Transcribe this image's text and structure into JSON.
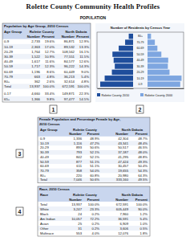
{
  "header": {
    "title": "Rolette County Community Health Profiles",
    "section": "POPULATION"
  },
  "markers": [
    "1",
    "2",
    "3",
    "4"
  ],
  "tables": [
    {
      "title": [
        "Population by Age Group, 2010 Census"
      ],
      "group_headers": [
        "Age Group",
        "Rolette County",
        "North Dakota"
      ],
      "columns": [
        "Number",
        "Percent",
        "Number",
        "Percent"
      ],
      "rows": [
        [
          "0-9",
          "2,733",
          "19.6%",
          "86,871",
          "12.9%"
        ],
        [
          "10-19",
          "2,363",
          "17.0%",
          "89,532",
          "13.3%"
        ],
        [
          "20-29",
          "1,764",
          "12.7%",
          "108,562",
          "16.1%"
        ],
        [
          "30-39",
          "1,522",
          "10.9%",
          "77,551",
          "11.5%"
        ],
        [
          "40-49",
          "1,617",
          "11.6%",
          "84,577",
          "12.6%"
        ],
        [
          "50-59",
          "1,717",
          "12.3%",
          "96,222",
          "14.3%"
        ],
        [
          "60-69",
          "1,196",
          "8.6%",
          "60,449",
          "9.0%"
        ],
        [
          "70-79",
          "663",
          "4.8%",
          "36,213",
          "5.4%"
        ],
        [
          "80+",
          "362",
          "2.6%",
          "32,614",
          "4.8%"
        ],
        [
          "Total",
          "13,937",
          "100.0%",
          "672,591",
          "100.0%"
        ]
      ],
      "summary_rows": [
        [
          "0-17",
          "4,660",
          "33.4%",
          "149,871",
          "22.3%"
        ],
        [
          "65+",
          "1,366",
          "9.8%",
          "97,477",
          "14.5%"
        ]
      ]
    },
    {
      "title": [
        "Female Population and Percentage Female by Age,",
        "2010 Census"
      ],
      "group_headers": [
        "Age Group",
        "Rolette County",
        "North Dakota"
      ],
      "columns": [
        "Number",
        "Percent",
        "Number",
        "Percent"
      ],
      "rows": [
        [
          "0-9",
          "1,336",
          "48.9%",
          "42,304",
          "48.7%"
        ],
        [
          "10-19",
          "1,116",
          "47.2%",
          "43,341",
          "48.4%"
        ],
        [
          "20-29",
          "893",
          "50.6%",
          "50,517",
          "46.5%"
        ],
        [
          "30-39",
          "793",
          "52.1%",
          "37,187",
          "48.0%"
        ],
        [
          "40-49",
          "842",
          "52.1%",
          "41,295",
          "48.8%"
        ],
        [
          "50-59",
          "877",
          "51.1%",
          "47,424",
          "49.3%"
        ],
        [
          "60-69",
          "611",
          "51.1%",
          "30,457",
          "50.4%"
        ],
        [
          "70-79",
          "358",
          "54.0%",
          "19,655",
          "54.3%"
        ],
        [
          "80+",
          "220",
          "60.8%",
          "20,980",
          "64.3%"
        ],
        [
          "Total",
          "7,046",
          "50.6%",
          "333,160",
          "49.5%"
        ]
      ]
    },
    {
      "title": [
        "Race, 2010 Census"
      ],
      "group_headers": [
        "Race",
        "Rolette County",
        "North Dakota"
      ],
      "columns": [
        "Number",
        "Percent",
        "Number",
        "Percent"
      ],
      "rows": [
        [
          "Total",
          "13,937",
          "100.0%",
          "672,591",
          "100.0%"
        ],
        [
          "White",
          "3,247",
          "23.3%",
          "605,449",
          "90.0%"
        ],
        [
          "Black",
          "24",
          "0.2%",
          "7,960",
          "1.2%"
        ],
        [
          "Am Indian",
          "10,057",
          "72.2%",
          "36,591",
          "5.4%"
        ],
        [
          "Asian",
          "25",
          "0.2%",
          "6,909",
          "1.0%"
        ],
        [
          "Other",
          "31",
          "0.2%",
          "3,606",
          "0.5%"
        ],
        [
          "Multirace",
          "553",
          "4.0%",
          "12,076",
          "1.8%"
        ]
      ]
    }
  ],
  "chart_data": {
    "type": "pyramid",
    "orientation": "horizontal",
    "title": "Number of Residents by Census Year",
    "categories": [
      "80+",
      "70-79",
      "60-69",
      "50-59",
      "40-49",
      "30-39",
      "20-29",
      "10-19",
      "0-9"
    ],
    "series": [
      {
        "name": "Rolette County 2010",
        "color": "#1f4e9c",
        "values": [
          362,
          663,
          1196,
          1717,
          1617,
          1522,
          1764,
          2363,
          2733
        ]
      },
      {
        "name": "Rolette County 2000",
        "color": "#7ea6e0",
        "values": [
          290,
          610,
          820,
          1150,
          1720,
          1690,
          1830,
          2830,
          2720
        ]
      }
    ],
    "xlim": [
      0,
      3000
    ],
    "tick_labels": "y",
    "legend": "bottom"
  }
}
